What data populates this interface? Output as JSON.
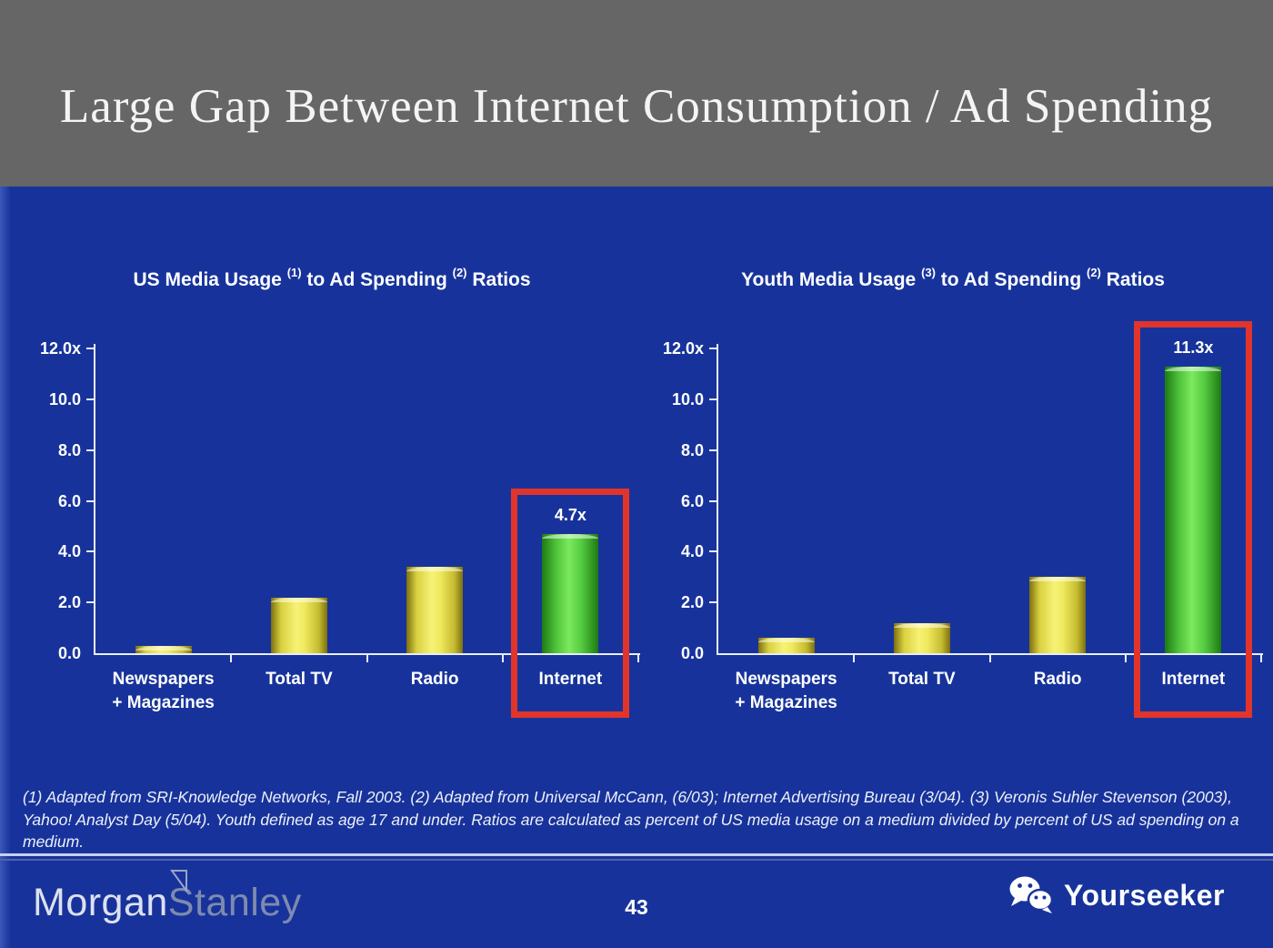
{
  "slide": {
    "title": "Large Gap Between Internet Consumption / Ad Spending",
    "page_number": "43",
    "footnote": "(1) Adapted from SRI-Knowledge Networks, Fall 2003.  (2) Adapted from Universal McCann, (6/03); Internet Advertising Bureau (3/04). (3) Veronis Suhler Stevenson (2003), Yahoo! Analyst Day (5/04).  Youth defined as age 17 and under.  Ratios are calculated as percent of US media usage on a medium divided by percent of US ad spending on a medium.",
    "brand_left": {
      "name": "Morgan Stanley",
      "part1": "Morgan",
      "part2": "Stanley"
    },
    "brand_right": {
      "label": "Yourseeker",
      "icon": "wechat-icon"
    }
  },
  "colors": {
    "header_bg": "#666667",
    "body_bg": "#17339B",
    "bar_yellow": "#EDE44C",
    "bar_green": "#4CCB3A",
    "highlight_red": "#E1342B",
    "axis": "#E9EDF8",
    "text": "#FFFFFF"
  },
  "chart_data": [
    {
      "type": "bar",
      "title": "US Media Usage (1) to Ad Spending (2) Ratios",
      "title_p1": "US Media Usage ",
      "title_s1": "(1)",
      "title_p2": " to Ad Spending ",
      "title_s2": "(2)",
      "title_p3": " Ratios",
      "categories": [
        "Newspapers\n+ Magazines",
        "Total TV",
        "Radio",
        "Internet"
      ],
      "values": [
        0.3,
        2.2,
        3.4,
        4.7
      ],
      "bar_colors": [
        "yellow",
        "yellow",
        "yellow",
        "green"
      ],
      "value_labels": [
        "",
        "",
        "",
        "4.7x"
      ],
      "highlighted_index": 3,
      "xlabel": "",
      "ylabel": "",
      "ylim": [
        0,
        12
      ],
      "yticks": [
        {
          "v": 0,
          "label": "0.0"
        },
        {
          "v": 2,
          "label": "2.0"
        },
        {
          "v": 4,
          "label": "4.0"
        },
        {
          "v": 6,
          "label": "6.0"
        },
        {
          "v": 8,
          "label": "8.0"
        },
        {
          "v": 10,
          "label": "10.0"
        },
        {
          "v": 12,
          "label": "12.0x"
        }
      ],
      "grid": false,
      "legend": false
    },
    {
      "type": "bar",
      "title": "Youth Media Usage (3) to Ad Spending (2) Ratios",
      "title_p1": "Youth Media Usage ",
      "title_s1": "(3)",
      "title_p2": " to Ad Spending ",
      "title_s2": "(2)",
      "title_p3": " Ratios",
      "categories": [
        "Newspapers\n+ Magazines",
        "Total TV",
        "Radio",
        "Internet"
      ],
      "values": [
        0.6,
        1.2,
        3.0,
        11.3
      ],
      "bar_colors": [
        "yellow",
        "yellow",
        "yellow",
        "green"
      ],
      "value_labels": [
        "",
        "",
        "",
        "11.3x"
      ],
      "highlighted_index": 3,
      "xlabel": "",
      "ylabel": "",
      "ylim": [
        0,
        12
      ],
      "yticks": [
        {
          "v": 0,
          "label": "0.0"
        },
        {
          "v": 2,
          "label": "2.0"
        },
        {
          "v": 4,
          "label": "4.0"
        },
        {
          "v": 6,
          "label": "6.0"
        },
        {
          "v": 8,
          "label": "8.0"
        },
        {
          "v": 10,
          "label": "10.0"
        },
        {
          "v": 12,
          "label": "12.0x"
        }
      ],
      "grid": false,
      "legend": false
    }
  ]
}
